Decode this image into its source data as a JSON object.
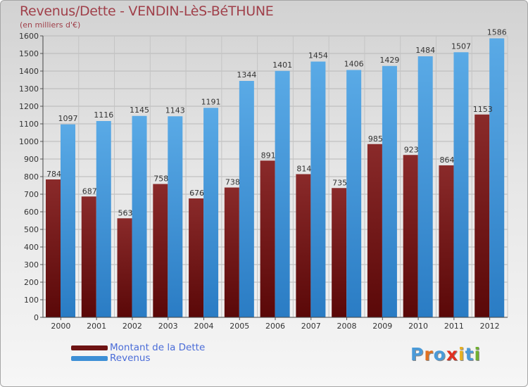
{
  "title": "Revenus/Dette - VENDIN-LèS-BéTHUNE",
  "subtitle": "(en milliers d'€)",
  "logo": {
    "letters": [
      {
        "ch": "P",
        "color": "#4a9ad8"
      },
      {
        "ch": "r",
        "color": "#e07020"
      },
      {
        "ch": "o",
        "color": "#4a9ad8"
      },
      {
        "ch": "x",
        "color": "#e03020"
      },
      {
        "ch": "i",
        "color": "#e8b020"
      },
      {
        "ch": "t",
        "color": "#4a9ad8"
      },
      {
        "ch": "i",
        "color": "#70b030"
      }
    ]
  },
  "colors": {
    "dette": "#6e1414",
    "revenus": "#3d8fd6",
    "title": "#a0404a",
    "legend_text": "#4a6cd8"
  },
  "chart_data": {
    "type": "bar",
    "categories": [
      "2000",
      "2001",
      "2002",
      "2003",
      "2004",
      "2005",
      "2006",
      "2007",
      "2008",
      "2009",
      "2010",
      "2011",
      "2012"
    ],
    "series": [
      {
        "name": "Montant de la Dette",
        "values": [
          784,
          687,
          563,
          758,
          676,
          738,
          891,
          814,
          735,
          985,
          923,
          864,
          1153
        ]
      },
      {
        "name": "Revenus",
        "values": [
          1097,
          1116,
          1145,
          1143,
          1191,
          1344,
          1401,
          1454,
          1406,
          1429,
          1484,
          1507,
          1586
        ]
      }
    ],
    "yticks": [
      0,
      100,
      200,
      300,
      400,
      500,
      600,
      700,
      800,
      900,
      1000,
      1100,
      1200,
      1300,
      1400,
      1500,
      1600
    ],
    "ylim": [
      0,
      1600
    ],
    "grid": true,
    "legend": "bottom-left"
  }
}
